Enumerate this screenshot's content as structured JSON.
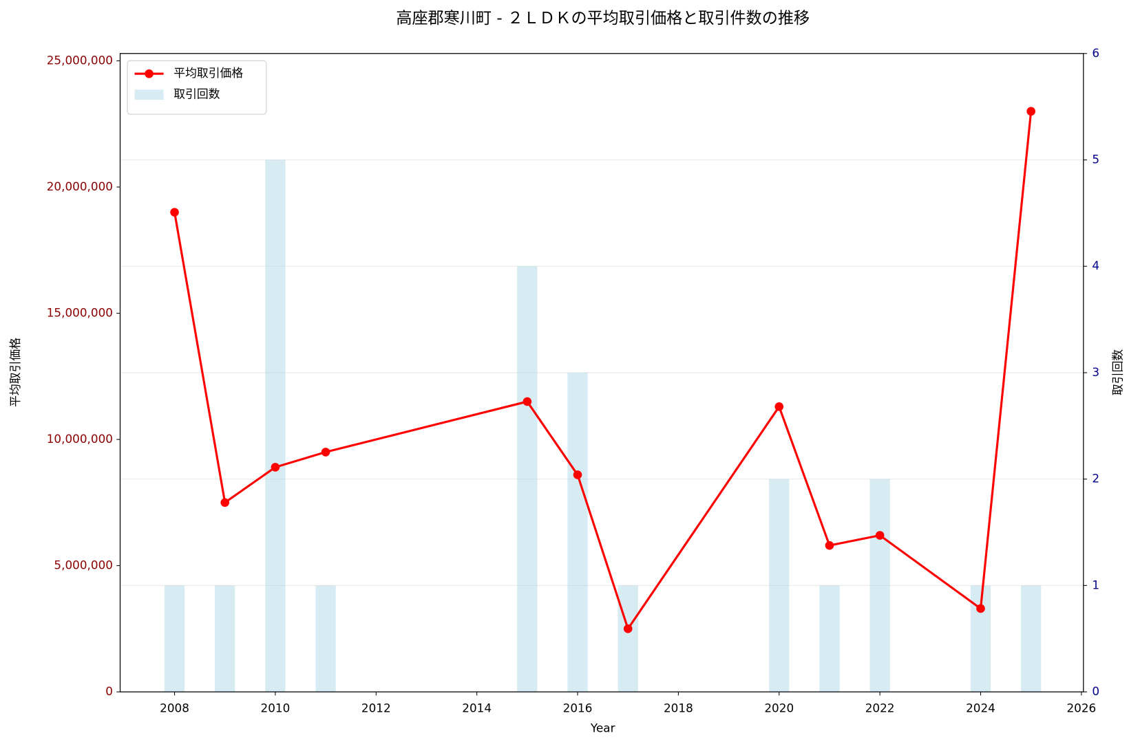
{
  "chart_data": {
    "type": "combo",
    "title": "高座郡寒川町 - ２ＬＤＫの平均取引価格と取引件数の推移",
    "x_label": "Year",
    "y_label": "平均取引価格",
    "y2_label": "取引回数",
    "x": [
      2008,
      2009,
      2010,
      2011,
      2015,
      2016,
      2017,
      2020,
      2021,
      2022,
      2024,
      2025
    ],
    "series": [
      {
        "name": "平均取引価格",
        "type": "line",
        "color": "#ff0000",
        "axis": "y",
        "values": [
          19000000,
          7500000,
          8900000,
          9500000,
          11500000,
          8600000,
          2500000,
          11300000,
          5800000,
          6200000,
          3300000,
          23000000
        ]
      },
      {
        "name": "取引回数",
        "type": "bar",
        "color": "#add8e6",
        "axis": "y2",
        "values": [
          1,
          1,
          5,
          1,
          4,
          3,
          1,
          2,
          1,
          2,
          1,
          1
        ]
      }
    ],
    "xlim": [
      2006.92,
      2026.04
    ],
    "xticks": [
      2008,
      2010,
      2012,
      2014,
      2016,
      2018,
      2020,
      2022,
      2024,
      2026
    ],
    "ylim": [
      0,
      25290000
    ],
    "yticks": [
      0,
      {
        "value": 5000000,
        "label": "5,000,000"
      },
      {
        "value": 10000000,
        "label": "10,000,000"
      },
      {
        "value": 15000000,
        "label": "15,000,000"
      },
      {
        "value": 20000000,
        "label": "20,000,000"
      },
      {
        "value": 25000000,
        "label": "25,000,000"
      }
    ],
    "y2lim": [
      0,
      6
    ],
    "y2ticks": [
      0,
      1,
      2,
      3,
      4,
      5,
      6
    ],
    "y_color": "#8b0000",
    "y2_color": "#00008b",
    "grid": true,
    "legend": "upper left"
  }
}
